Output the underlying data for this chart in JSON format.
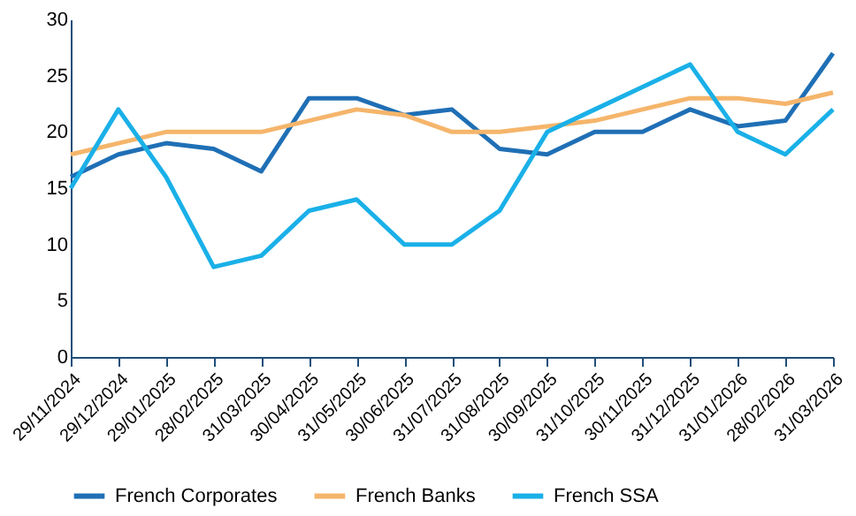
{
  "chart_data": {
    "type": "line",
    "categories": [
      "29/11/2024",
      "29/12/2024",
      "29/01/2025",
      "28/02/2025",
      "31/03/2025",
      "30/04/2025",
      "31/05/2025",
      "30/06/2025",
      "31/07/2025",
      "31/08/2025",
      "30/09/2025",
      "31/10/2025",
      "30/11/2025",
      "31/12/2025",
      "31/01/2026",
      "28/02/2026",
      "31/03/2026"
    ],
    "series": [
      {
        "name": "French Corporates",
        "color": "#1f6fb5",
        "values": [
          16,
          18,
          19,
          18.5,
          16.5,
          23,
          23,
          21.5,
          22,
          18.5,
          18,
          20,
          20,
          22,
          20.5,
          21,
          27
        ]
      },
      {
        "name": "French Banks",
        "color": "#f5b56b",
        "values": [
          18,
          19,
          20,
          20,
          20,
          21,
          22,
          21.5,
          20,
          20,
          20.5,
          21,
          22,
          23,
          23,
          22.5,
          23.5
        ]
      },
      {
        "name": "French SSA",
        "color": "#1ab0e8",
        "values": [
          15,
          22,
          16,
          8,
          9,
          13,
          14,
          10,
          10,
          13,
          20,
          22,
          24,
          26,
          20,
          18,
          22
        ]
      }
    ],
    "ylim": [
      0,
      30
    ],
    "yticks": [
      0,
      5,
      10,
      15,
      20,
      25,
      30
    ],
    "grid": false,
    "legend": "bottom",
    "marker": "none",
    "line_style": "solid"
  }
}
